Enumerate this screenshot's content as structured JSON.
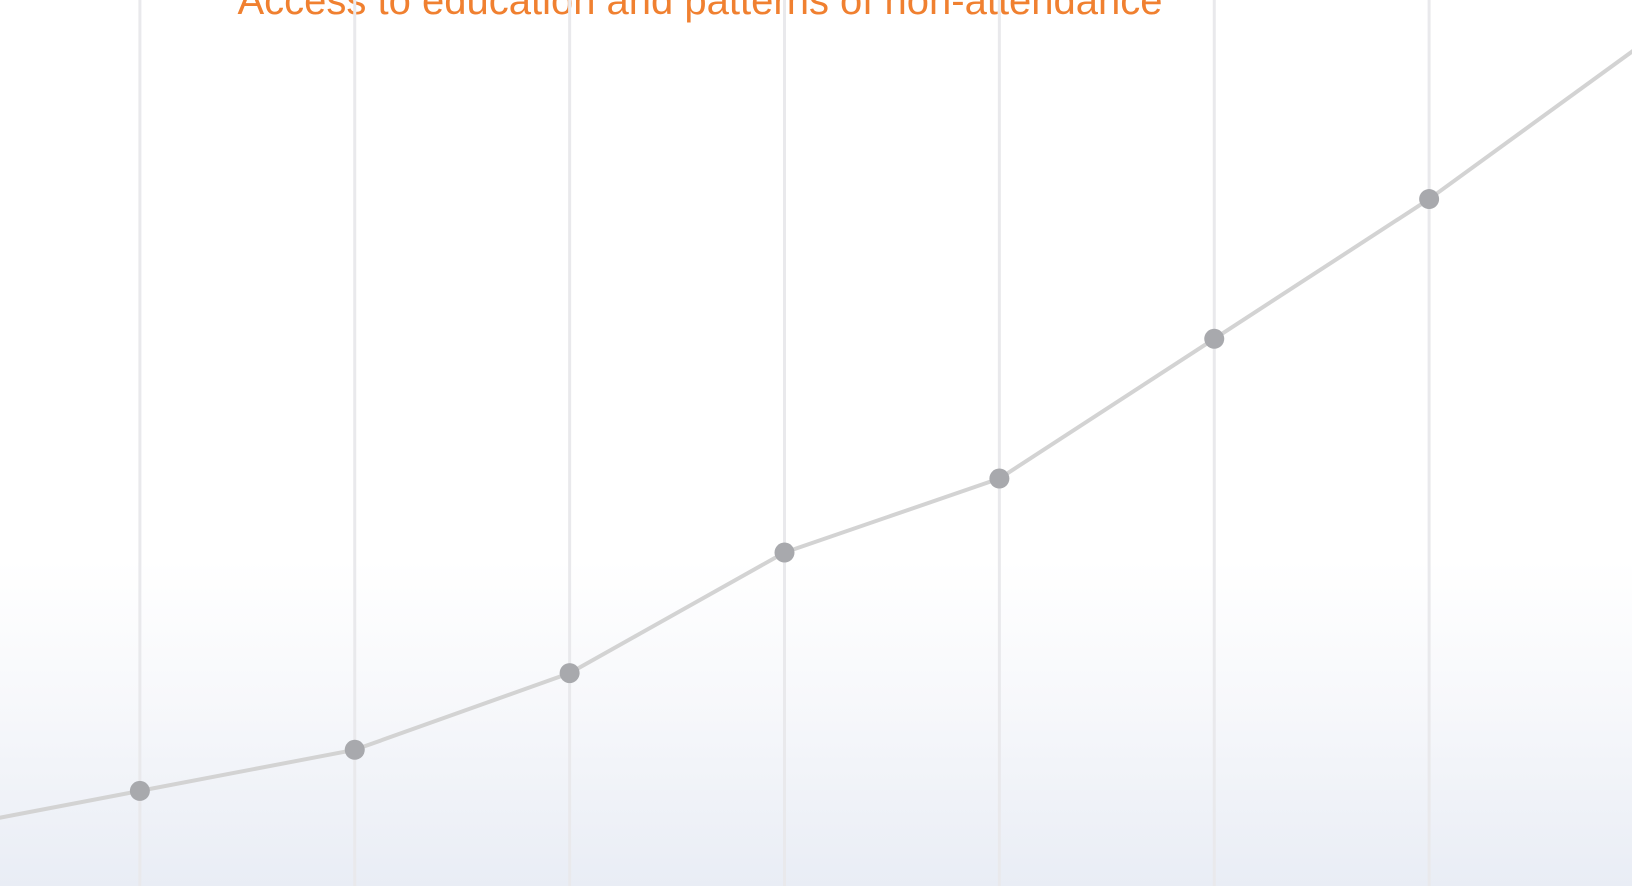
{
  "chart_data": {
    "type": "line",
    "title": "Access to education and patterns of non-attendance",
    "xlabel": "",
    "ylabel": "",
    "grid": "vertical",
    "x": [
      0,
      1,
      2,
      3,
      4,
      5,
      6,
      7,
      8
    ],
    "series": [
      {
        "values": [
          0,
          1.5,
          3.0,
          5.8,
          10.2,
          12.9,
          18.0,
          23.1,
          28.8
        ],
        "markers": [
          false,
          true,
          true,
          true,
          true,
          true,
          true,
          true,
          false
        ]
      }
    ],
    "ylim": [
      0,
      29.5
    ],
    "colors": {
      "line": "#d3d3d3",
      "marker": "#a8a9ad",
      "grid": "#e9e9ec",
      "title": "#f08030"
    }
  }
}
